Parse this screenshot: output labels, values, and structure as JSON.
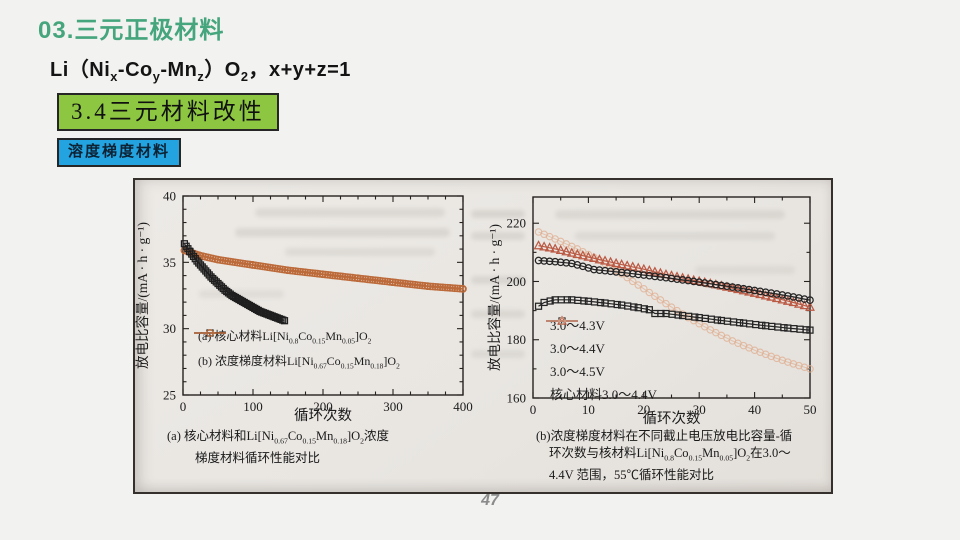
{
  "slide": {
    "title": "03.三元正极材料",
    "formula_rich": [
      "Li（Ni",
      {
        "sub": "x"
      },
      "-Co",
      {
        "sub": "y"
      },
      "-Mn",
      {
        "sub": "z"
      },
      "）O",
      {
        "sub": "2"
      },
      "，x+y+z=1"
    ],
    "section_box_label": "3.4三元材料改性",
    "tag_box_label": "溶度梯度材料",
    "page_number": "47",
    "colors": {
      "title_green": "#45a57c",
      "section_box_bg": "#8dc640",
      "tag_box_bg": "#23a3e0",
      "photo_bg": "#e9e6e2",
      "series_orange": "#bc6a3a",
      "series_red": "#bb5a44",
      "series_faint": "#e0b093",
      "series_black": "#242424"
    }
  },
  "chart_data": [
    {
      "type": "scatter",
      "title": "",
      "xlabel": "循环次数",
      "ylabel": "放电比容量/(mA · h · g⁻¹)",
      "xlim": [
        0,
        400
      ],
      "ylim": [
        25,
        40
      ],
      "xticks": [
        0,
        100,
        200,
        300,
        400
      ],
      "yticks": [
        25,
        30,
        35,
        40
      ],
      "x_minor_step": 25,
      "y_minor_step": 1,
      "grid": false,
      "legend_position": "lower left",
      "caption_rich_lines": [
        [
          "(a) 核心材料和Li[Ni",
          {
            "sub": "0.67"
          },
          "Co",
          {
            "sub": "0.15"
          },
          "Mn",
          {
            "sub": "0.18"
          },
          "]O",
          {
            "sub": "2"
          },
          "浓度"
        ],
        [
          "梯度材料循环性能对比"
        ]
      ],
      "series": [
        {
          "label_rich": [
            "(a) 核心材料Li[Ni",
            {
              "sub": "0.8"
            },
            "Co",
            {
              "sub": "0.15"
            },
            "Mn",
            {
              "sub": "0.05"
            },
            "]O",
            {
              "sub": "2"
            }
          ],
          "marker": "square",
          "color": "#1f1f1f",
          "marker_step": 2.5,
          "line_width": 1.2,
          "points": [
            [
              2,
              36.4
            ],
            [
              10,
              35.8
            ],
            [
              20,
              35.1
            ],
            [
              30,
              34.5
            ],
            [
              40,
              33.9
            ],
            [
              50,
              33.4
            ],
            [
              60,
              32.9
            ],
            [
              70,
              32.5
            ],
            [
              80,
              32.2
            ],
            [
              90,
              31.9
            ],
            [
              100,
              31.6
            ],
            [
              110,
              31.3
            ],
            [
              120,
              31.1
            ],
            [
              130,
              30.9
            ],
            [
              145,
              30.6
            ]
          ]
        },
        {
          "label_rich": [
            "(b) 浓度梯度材料Li[Ni",
            {
              "sub": "0.67"
            },
            "Co",
            {
              "sub": "0.15"
            },
            "Mn",
            {
              "sub": "0.18"
            },
            "]O",
            {
              "sub": "2"
            }
          ],
          "marker": "circle",
          "color": "#bc6a3a",
          "marker_step": 3.5,
          "line_width": 1.8,
          "points": [
            [
              2,
              35.9
            ],
            [
              25,
              35.5
            ],
            [
              50,
              35.2
            ],
            [
              100,
              34.8
            ],
            [
              150,
              34.4
            ],
            [
              200,
              34.1
            ],
            [
              250,
              33.8
            ],
            [
              300,
              33.5
            ],
            [
              350,
              33.2
            ],
            [
              400,
              33.0
            ]
          ]
        }
      ]
    },
    {
      "type": "scatter",
      "title": "",
      "xlabel": "循环次数",
      "ylabel": "放电比容量/(mA · h · g⁻¹)",
      "xlim": [
        0,
        50
      ],
      "ylim": [
        160,
        229
      ],
      "xticks": [
        0,
        10,
        20,
        30,
        40,
        50
      ],
      "yticks": [
        160,
        180,
        200,
        220
      ],
      "x_minor_step": 5,
      "y_minor_step": 10,
      "grid": false,
      "legend_position": "lower left",
      "caption_rich_lines": [
        [
          "(b)浓度梯度材料在不同截止电压放电比容量-循"
        ],
        [
          "环次数与核材料Li[Ni",
          {
            "sub": "0.8"
          },
          "Co",
          {
            "sub": "0.15"
          },
          "Mn",
          {
            "sub": "0.05"
          },
          "]O",
          {
            "sub": "2"
          },
          "在3.0～"
        ],
        [
          "4.4V 范围，55℃循环性能对比"
        ]
      ],
      "series": [
        {
          "label_rich": [
            "3.0～4.3V"
          ],
          "marker": "square",
          "color": "#242424",
          "marker_step": 1.1,
          "line_width": 1.2,
          "points": [
            [
              1,
              191.5
            ],
            [
              2,
              192.8
            ],
            [
              4,
              193.7
            ],
            [
              7,
              193.7
            ],
            [
              10,
              193.2
            ],
            [
              13,
              192.6
            ],
            [
              16,
              191.9
            ],
            [
              19,
              191.0
            ],
            [
              21,
              190.3
            ],
            [
              22,
              189.0
            ],
            [
              24,
              189.0
            ],
            [
              27,
              188.3
            ],
            [
              30,
              187.6
            ],
            [
              34,
              186.6
            ],
            [
              38,
              185.7
            ],
            [
              42,
              184.8
            ],
            [
              46,
              184.0
            ],
            [
              50,
              183.3
            ]
          ]
        },
        {
          "label_rich": [
            "3.0～4.4V"
          ],
          "marker": "circle",
          "color": "#242424",
          "marker_step": 1,
          "line_width": 1.2,
          "points": [
            [
              1,
              207.2
            ],
            [
              4,
              206.8
            ],
            [
              7,
              206.2
            ],
            [
              9,
              205.2
            ],
            [
              11,
              204.1
            ],
            [
              14,
              203.5
            ],
            [
              17,
              202.9
            ],
            [
              20,
              202.2
            ],
            [
              24,
              201.3
            ],
            [
              28,
              200.3
            ],
            [
              32,
              199.2
            ],
            [
              36,
              198.1
            ],
            [
              40,
              196.9
            ],
            [
              44,
              195.7
            ],
            [
              47,
              194.7
            ],
            [
              50,
              193.6
            ]
          ]
        },
        {
          "label_rich": [
            "3.0～4.5V"
          ],
          "marker": "triangle",
          "color": "#bb5a44",
          "marker_step": 1,
          "line_width": 1.2,
          "points": [
            [
              1,
              212.3
            ],
            [
              4,
              211.2
            ],
            [
              8,
              209.3
            ],
            [
              12,
              207.5
            ],
            [
              16,
              205.8
            ],
            [
              20,
              204.2
            ],
            [
              24,
              202.4
            ],
            [
              28,
              200.8
            ],
            [
              32,
              199.3
            ],
            [
              36,
              197.7
            ],
            [
              40,
              196.0
            ],
            [
              44,
              194.2
            ],
            [
              47,
              192.8
            ],
            [
              50,
              191.2
            ]
          ]
        },
        {
          "label_rich": [
            "核心材料3.0～4.4V"
          ],
          "marker": "circle",
          "color": "#e0b093",
          "marker_step": 1,
          "line_width": 1.0,
          "faint": true,
          "points": [
            [
              1,
              217.0
            ],
            [
              4,
              214.6
            ],
            [
              8,
              211.2
            ],
            [
              12,
              207.3
            ],
            [
              16,
              202.6
            ],
            [
              20,
              197.5
            ],
            [
              24,
              192.4
            ],
            [
              28,
              187.6
            ],
            [
              32,
              183.4
            ],
            [
              36,
              179.6
            ],
            [
              40,
              176.4
            ],
            [
              44,
              173.6
            ],
            [
              47,
              171.7
            ],
            [
              50,
              170.0
            ]
          ]
        }
      ]
    }
  ]
}
